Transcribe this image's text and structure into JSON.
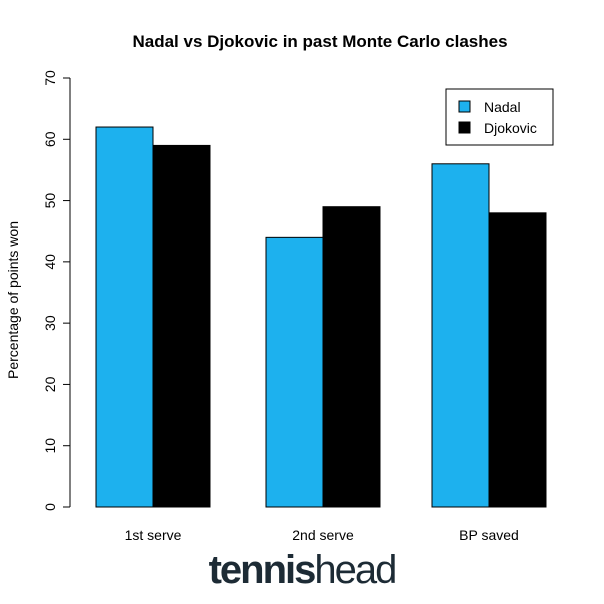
{
  "chart_data": {
    "type": "bar",
    "title": "Nadal vs Djokovic in past Monte Carlo clashes",
    "ylabel": "Percentage of points won",
    "xlabel": "",
    "categories": [
      "1st serve",
      "2nd serve",
      "BP saved"
    ],
    "series": [
      {
        "name": "Nadal",
        "values": [
          62,
          44,
          56
        ],
        "color": "#1db1ee"
      },
      {
        "name": "Djokovic",
        "values": [
          59,
          49,
          48
        ],
        "color": "#000000"
      }
    ],
    "ylim": [
      0,
      70
    ],
    "yticks": [
      "0",
      "10",
      "20",
      "30",
      "40",
      "50",
      "60",
      "70"
    ],
    "grid": false,
    "legend_position": "top-right"
  },
  "logo": {
    "part1": "tennis",
    "part2": "head"
  }
}
